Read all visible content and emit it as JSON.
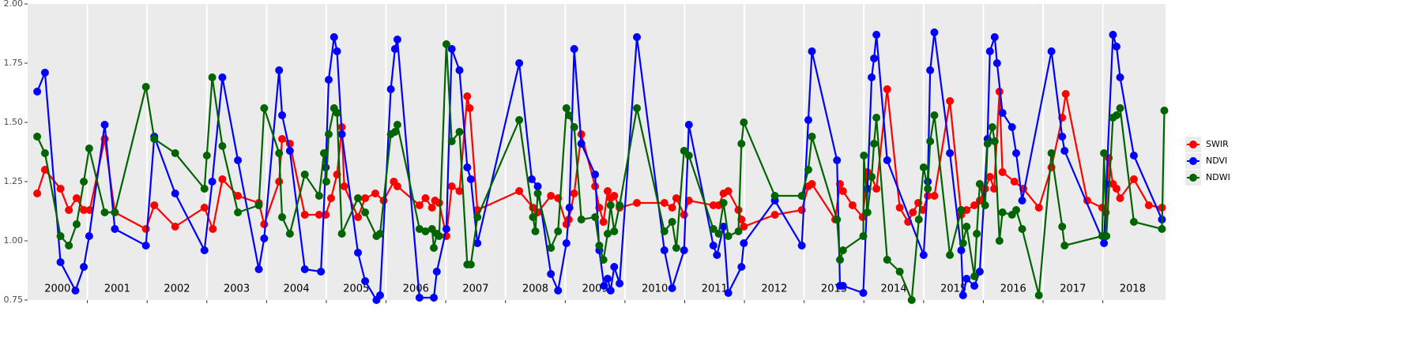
{
  "chart_data": {
    "type": "line",
    "xlim": [
      2000,
      2019.05
    ],
    "ylim": [
      0.75,
      2.0
    ],
    "yticks": [
      0.75,
      {
        "value": 1.0,
        "label": "1.00"
      },
      1.25,
      {
        "value": 1.5,
        "label": "1.50"
      },
      1.75,
      {
        "value": 2.0,
        "label": "2.00"
      }
    ],
    "xticks": [
      {
        "value": 2000.5,
        "label": "2000"
      },
      {
        "value": 2001.5,
        "label": "2001"
      },
      {
        "value": 2002.5,
        "label": "2002"
      },
      {
        "value": 2003.5,
        "label": "2003"
      },
      {
        "value": 2004.5,
        "label": "2004"
      },
      {
        "value": 2005.5,
        "label": "2005"
      },
      {
        "value": 2006.5,
        "label": "2006"
      },
      {
        "value": 2007.5,
        "label": "2007"
      },
      {
        "value": 2008.5,
        "label": "2008"
      },
      {
        "value": 2009.5,
        "label": "2009"
      },
      {
        "value": 2010.5,
        "label": "2010"
      },
      {
        "value": 2011.5,
        "label": "2011"
      },
      {
        "value": 2012.5,
        "label": "2012"
      },
      {
        "value": 2013.5,
        "label": "2013"
      },
      {
        "value": 2014.5,
        "label": "2014"
      },
      {
        "value": 2015.5,
        "label": "2015"
      },
      {
        "value": 2016.5,
        "label": "2016"
      },
      {
        "value": 2017.5,
        "label": "2017"
      },
      {
        "value": 2018.5,
        "label": "2018"
      }
    ],
    "xgrid": [
      2001,
      2002,
      2003,
      2004,
      2005,
      2006,
      2007,
      2008,
      2009,
      2010,
      2011,
      2012,
      2013,
      2014,
      2015,
      2016,
      2017,
      2018
    ],
    "legend": "right",
    "series": [
      {
        "name": "SWIR",
        "color": "#ff0000",
        "x": [
          2000.16,
          2000.29,
          2000.55,
          2000.69,
          2000.82,
          2000.94,
          2001.04,
          2001.29,
          2001.46,
          2001.98,
          2002.12,
          2002.47,
          2002.96,
          2003.1,
          2003.26,
          2003.52,
          2003.87,
          2003.96,
          2004.21,
          2004.26,
          2004.39,
          2004.64,
          2004.88,
          2004.99,
          2005.08,
          2005.18,
          2005.26,
          2005.3,
          2005.53,
          2005.65,
          2005.82,
          2005.96,
          2006.13,
          2006.19,
          2006.56,
          2006.66,
          2006.77,
          2006.82,
          2006.89,
          2007.01,
          2007.1,
          2007.23,
          2007.36,
          2007.4,
          2007.53,
          2008.23,
          2008.46,
          2008.54,
          2008.76,
          2008.88,
          2009.02,
          2009.06,
          2009.15,
          2009.27,
          2009.5,
          2009.57,
          2009.64,
          2009.71,
          2009.76,
          2009.82,
          2009.91,
          2010.2,
          2010.66,
          2010.79,
          2010.86,
          2010.99,
          2011.07,
          2011.48,
          2011.57,
          2011.65,
          2011.73,
          2011.9,
          2011.95,
          2011.99,
          2012.51,
          2012.96,
          2013.07,
          2013.13,
          2013.52,
          2013.6,
          2013.65,
          2013.81,
          2013.98,
          2014.06,
          2014.13,
          2014.21,
          2014.39,
          2014.6,
          2014.74,
          2014.82,
          2014.91,
          2014.99,
          2015.07,
          2015.18,
          2015.44,
          2015.63,
          2015.72,
          2015.85,
          2015.94,
          2016.03,
          2016.11,
          2016.18,
          2016.27,
          2016.32,
          2016.52,
          2016.67,
          2016.93,
          2017.14,
          2017.32,
          2017.38,
          2017.74,
          2017.99,
          2018.05,
          2018.1,
          2018.17,
          2018.23,
          2018.29,
          2018.52,
          2018.77,
          2018.99
        ],
        "values": [
          1.2,
          1.3,
          1.22,
          1.13,
          1.18,
          1.13,
          1.13,
          1.43,
          1.12,
          1.05,
          1.15,
          1.06,
          1.14,
          1.05,
          1.26,
          1.19,
          1.16,
          1.07,
          1.25,
          1.43,
          1.41,
          1.11,
          1.11,
          1.11,
          1.18,
          1.28,
          1.48,
          1.23,
          1.1,
          1.18,
          1.2,
          1.17,
          1.25,
          1.23,
          1.15,
          1.18,
          1.14,
          1.17,
          1.16,
          1.02,
          1.23,
          1.21,
          1.61,
          1.56,
          1.13,
          1.21,
          1.14,
          1.12,
          1.19,
          1.18,
          1.07,
          1.09,
          1.2,
          1.45,
          1.23,
          1.14,
          1.08,
          1.21,
          1.18,
          1.19,
          1.14,
          1.16,
          1.16,
          1.14,
          1.18,
          1.11,
          1.17,
          1.15,
          1.15,
          1.2,
          1.21,
          1.13,
          1.09,
          1.06,
          1.11,
          1.13,
          1.23,
          1.24,
          1.09,
          1.24,
          1.21,
          1.15,
          1.1,
          1.29,
          1.27,
          1.22,
          1.64,
          1.14,
          1.08,
          1.12,
          1.16,
          1.13,
          1.19,
          1.19,
          1.59,
          1.11,
          1.13,
          1.15,
          1.17,
          1.22,
          1.27,
          1.22,
          1.63,
          1.29,
          1.25,
          1.22,
          1.14,
          1.31,
          1.52,
          1.62,
          1.17,
          1.14,
          1.12,
          1.35,
          1.24,
          1.22,
          1.18,
          1.26,
          1.15,
          1.14
        ]
      },
      {
        "name": "NDVI",
        "color": "#0000ff",
        "x": [
          2000.16,
          2000.29,
          2000.55,
          2000.8,
          2000.94,
          2001.03,
          2001.29,
          2001.46,
          2001.98,
          2002.12,
          2002.47,
          2002.96,
          2003.09,
          2003.26,
          2003.52,
          2003.87,
          2003.96,
          2004.21,
          2004.26,
          2004.39,
          2004.64,
          2004.91,
          2004.99,
          2005.04,
          2005.13,
          2005.18,
          2005.26,
          2005.53,
          2005.65,
          2005.84,
          2005.9,
          2006.08,
          2006.15,
          2006.19,
          2006.56,
          2006.8,
          2006.85,
          2007.01,
          2007.1,
          2007.23,
          2007.36,
          2007.42,
          2007.53,
          2008.23,
          2008.44,
          2008.54,
          2008.76,
          2008.88,
          2009.02,
          2009.07,
          2009.15,
          2009.27,
          2009.5,
          2009.57,
          2009.65,
          2009.71,
          2009.76,
          2009.82,
          2009.91,
          2010.2,
          2010.66,
          2010.79,
          2010.99,
          2011.07,
          2011.48,
          2011.54,
          2011.65,
          2011.73,
          2011.95,
          2011.99,
          2012.51,
          2012.96,
          2013.07,
          2013.13,
          2013.55,
          2013.6,
          2013.65,
          2013.99,
          2014.06,
          2014.13,
          2014.17,
          2014.21,
          2014.39,
          2015.0,
          2015.07,
          2015.11,
          2015.18,
          2015.44,
          2015.63,
          2015.66,
          2015.72,
          2015.85,
          2015.94,
          2016.07,
          2016.11,
          2016.19,
          2016.23,
          2016.32,
          2016.48,
          2016.55,
          2016.65,
          2017.14,
          2017.32,
          2017.36,
          2018.02,
          2018.06,
          2018.17,
          2018.23,
          2018.29,
          2018.52,
          2018.99
        ],
        "values": [
          1.63,
          1.71,
          0.91,
          0.79,
          0.89,
          1.02,
          1.49,
          1.05,
          0.98,
          1.44,
          1.2,
          0.96,
          1.25,
          1.69,
          1.34,
          0.88,
          1.01,
          1.72,
          1.53,
          1.38,
          0.88,
          0.87,
          1.31,
          1.68,
          1.86,
          1.8,
          1.45,
          0.95,
          0.83,
          0.75,
          0.77,
          1.64,
          1.81,
          1.85,
          0.76,
          0.76,
          0.87,
          1.05,
          1.81,
          1.72,
          1.31,
          1.26,
          0.99,
          1.75,
          1.26,
          1.23,
          0.86,
          0.79,
          0.99,
          1.14,
          1.81,
          1.41,
          1.28,
          0.96,
          0.81,
          0.84,
          0.79,
          0.89,
          0.82,
          1.86,
          0.96,
          0.8,
          0.96,
          1.49,
          0.98,
          0.94,
          1.06,
          0.78,
          0.89,
          0.99,
          1.17,
          0.98,
          1.51,
          1.8,
          1.34,
          0.81,
          0.81,
          0.78,
          1.22,
          1.69,
          1.77,
          1.87,
          1.34,
          0.94,
          1.25,
          1.72,
          1.88,
          1.37,
          0.96,
          0.77,
          0.84,
          0.81,
          0.87,
          1.43,
          1.8,
          1.86,
          1.75,
          1.54,
          1.48,
          1.37,
          1.17,
          1.8,
          1.44,
          1.38,
          0.99,
          1.24,
          1.87,
          1.82,
          1.69,
          1.36,
          1.09
        ]
      },
      {
        "name": "NDWI",
        "color": "#006400",
        "x": [
          2000.16,
          2000.29,
          2000.55,
          2000.69,
          2000.82,
          2000.94,
          2001.03,
          2001.29,
          2001.46,
          2001.98,
          2002.12,
          2002.47,
          2002.96,
          2003.0,
          2003.09,
          2003.26,
          2003.52,
          2003.87,
          2003.96,
          2004.21,
          2004.26,
          2004.39,
          2004.64,
          2004.88,
          2004.96,
          2005.0,
          2005.04,
          2005.13,
          2005.18,
          2005.26,
          2005.53,
          2005.65,
          2005.84,
          2005.9,
          2006.08,
          2006.15,
          2006.19,
          2006.56,
          2006.66,
          2006.77,
          2006.8,
          2006.85,
          2006.89,
          2007.01,
          2007.1,
          2007.23,
          2007.36,
          2007.42,
          2007.53,
          2008.23,
          2008.46,
          2008.5,
          2008.54,
          2008.76,
          2008.88,
          2009.02,
          2009.06,
          2009.15,
          2009.27,
          2009.5,
          2009.57,
          2009.64,
          2009.71,
          2009.76,
          2009.82,
          2009.91,
          2010.2,
          2010.66,
          2010.79,
          2010.86,
          2010.99,
          2011.07,
          2011.48,
          2011.57,
          2011.65,
          2011.73,
          2011.9,
          2011.95,
          2011.99,
          2012.51,
          2012.96,
          2013.07,
          2013.13,
          2013.55,
          2013.6,
          2013.65,
          2013.99,
          2014.0,
          2014.06,
          2014.13,
          2014.17,
          2014.21,
          2014.39,
          2014.6,
          2014.8,
          2014.92,
          2015.0,
          2015.07,
          2015.11,
          2015.18,
          2015.44,
          2015.63,
          2015.66,
          2015.72,
          2015.85,
          2015.89,
          2015.94,
          2016.03,
          2016.07,
          2016.15,
          2016.19,
          2016.27,
          2016.32,
          2016.48,
          2016.55,
          2016.65,
          2016.93,
          2017.14,
          2017.32,
          2017.36,
          2017.99,
          2018.02,
          2018.06,
          2018.17,
          2018.23,
          2018.29,
          2018.52,
          2018.99,
          2019.03
        ],
        "values": [
          1.44,
          1.37,
          1.02,
          0.98,
          1.07,
          1.25,
          1.39,
          1.12,
          1.12,
          1.65,
          1.43,
          1.37,
          1.22,
          1.36,
          1.69,
          1.4,
          1.12,
          1.15,
          1.56,
          1.37,
          1.1,
          1.03,
          1.28,
          1.19,
          1.37,
          1.25,
          1.45,
          1.56,
          1.54,
          1.03,
          1.18,
          1.12,
          1.02,
          1.03,
          1.45,
          1.46,
          1.49,
          1.05,
          1.04,
          1.05,
          0.97,
          1.03,
          1.02,
          1.83,
          1.42,
          1.46,
          0.9,
          0.9,
          1.1,
          1.51,
          1.1,
          1.04,
          1.2,
          0.97,
          1.04,
          1.56,
          1.53,
          1.48,
          1.09,
          1.1,
          0.98,
          0.92,
          1.03,
          1.15,
          1.04,
          1.15,
          1.56,
          1.04,
          1.08,
          0.97,
          1.38,
          1.36,
          1.05,
          1.03,
          1.16,
          1.02,
          1.04,
          1.41,
          1.5,
          1.19,
          1.19,
          1.3,
          1.44,
          1.09,
          0.92,
          0.96,
          1.02,
          1.36,
          1.12,
          1.27,
          1.41,
          1.52,
          0.92,
          0.87,
          0.75,
          1.09,
          1.31,
          1.22,
          1.42,
          1.53,
          0.94,
          1.13,
          0.99,
          1.06,
          0.85,
          1.03,
          1.24,
          1.15,
          1.41,
          1.48,
          1.42,
          1.0,
          1.12,
          1.11,
          1.13,
          1.05,
          0.77,
          1.37,
          1.06,
          0.98,
          1.02,
          1.37,
          1.02,
          1.52,
          1.53,
          1.56,
          1.08,
          1.05,
          1.55
        ]
      }
    ]
  }
}
